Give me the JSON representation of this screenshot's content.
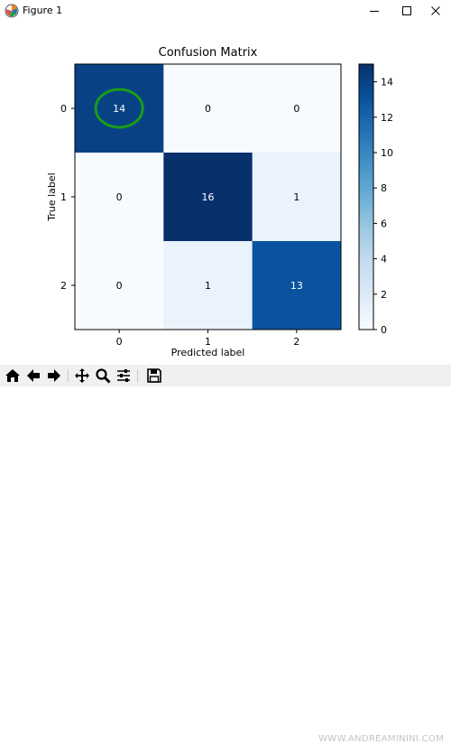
{
  "window": {
    "title": "Figure 1",
    "icons": [
      "matplotlib-icon",
      "minimize-icon",
      "maximize-icon",
      "close-icon"
    ]
  },
  "chart_data": {
    "type": "heatmap",
    "title": "Confusion Matrix",
    "xlabel": "Predicted label",
    "ylabel": "True label",
    "x_ticks": [
      "0",
      "1",
      "2"
    ],
    "y_ticks": [
      "0",
      "1",
      "2"
    ],
    "matrix": [
      [
        14,
        0,
        0
      ],
      [
        0,
        16,
        1
      ],
      [
        0,
        1,
        13
      ]
    ],
    "cell_labels": [
      [
        "14",
        "0",
        "0"
      ],
      [
        "0",
        "16",
        "1"
      ],
      [
        "0",
        "1",
        "13"
      ]
    ],
    "colormap": "Blues",
    "colorbar": {
      "range": [
        0,
        15
      ],
      "ticks": [
        0,
        2,
        4,
        6,
        8,
        10,
        12,
        14
      ],
      "tick_labels": [
        "0",
        "2",
        "4",
        "6",
        "8",
        "10",
        "12",
        "14"
      ]
    },
    "highlight_cell": [
      0,
      0
    ],
    "highlight_color": "#1a9c1a"
  },
  "toolbar": {
    "buttons": [
      "home-icon",
      "back-icon",
      "forward-icon",
      "pan-icon",
      "zoom-icon",
      "configure-subplots-icon",
      "save-icon"
    ]
  },
  "watermark": "WWW.ANDREAMININI.COM"
}
